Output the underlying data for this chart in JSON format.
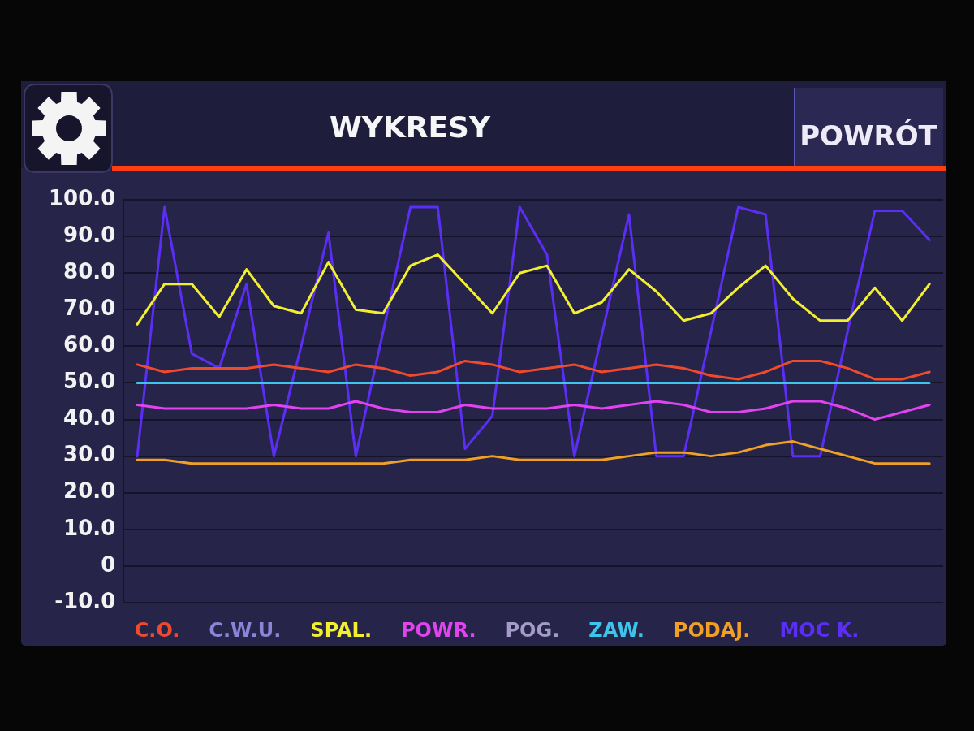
{
  "chart_data": {
    "type": "line",
    "title": "WYKRESY",
    "annotations": [
      "POWRÓT"
    ],
    "categories": [
      null,
      null,
      null,
      null,
      null,
      null,
      null,
      null,
      null,
      null,
      null,
      null,
      null,
      null,
      null,
      null,
      null,
      null,
      null,
      null,
      null,
      null,
      null,
      null,
      null,
      null,
      null,
      null,
      null,
      null
    ],
    "series": [
      {
        "name": "C.O.",
        "color": "#f04a2c",
        "values": [
          55,
          53,
          54,
          54,
          54,
          55,
          54,
          53,
          55,
          54,
          52,
          53,
          56,
          55,
          53,
          54,
          55,
          53,
          54,
          55,
          54,
          52,
          51,
          53,
          56,
          56,
          54,
          51,
          51,
          53
        ]
      },
      {
        "name": "C.W.U.",
        "color": "#8c84d8",
        "values": [
          null,
          null,
          null,
          null,
          null,
          null,
          null,
          null,
          null,
          null,
          null,
          null,
          null,
          null,
          null,
          null,
          null,
          null,
          null,
          null,
          null,
          null,
          null,
          null,
          null,
          null,
          null,
          null,
          null,
          null
        ]
      },
      {
        "name": "SPAL.",
        "color": "#f2ee30",
        "values": [
          66,
          77,
          77,
          68,
          81,
          71,
          69,
          83,
          70,
          69,
          82,
          85,
          77,
          69,
          80,
          82,
          69,
          72,
          81,
          75,
          67,
          69,
          76,
          82,
          73,
          67,
          67,
          76,
          67,
          77
        ]
      },
      {
        "name": "POWR.",
        "color": "#e044ee",
        "values": [
          44,
          43,
          43,
          43,
          43,
          44,
          43,
          43,
          45,
          43,
          42,
          42,
          44,
          43,
          43,
          43,
          44,
          43,
          44,
          45,
          44,
          42,
          42,
          43,
          45,
          45,
          43,
          40,
          42,
          44
        ]
      },
      {
        "name": "POG.",
        "color": "#a49cc8",
        "values": [
          null,
          null,
          null,
          null,
          null,
          null,
          null,
          null,
          null,
          null,
          null,
          null,
          null,
          null,
          null,
          null,
          null,
          null,
          null,
          null,
          null,
          null,
          null,
          null,
          null,
          null,
          null,
          null,
          null,
          null
        ]
      },
      {
        "name": "ZAW.",
        "color": "#3cc4ec",
        "values": [
          50,
          50,
          50,
          50,
          50,
          50,
          50,
          50,
          50,
          50,
          50,
          50,
          50,
          50,
          50,
          50,
          50,
          50,
          50,
          50,
          50,
          50,
          50,
          50,
          50,
          50,
          50,
          50,
          50,
          50
        ]
      },
      {
        "name": "PODAJ.",
        "color": "#f0a024",
        "values": [
          29,
          29,
          28,
          28,
          28,
          28,
          28,
          28,
          28,
          28,
          29,
          29,
          29,
          30,
          29,
          29,
          29,
          29,
          30,
          31,
          31,
          30,
          31,
          33,
          34,
          32,
          30,
          28,
          28,
          28
        ]
      },
      {
        "name": "MOC K.",
        "color": "#5b2ef5",
        "values": [
          30,
          98,
          58,
          54,
          77,
          30,
          60,
          91,
          30,
          64,
          98,
          98,
          32,
          41,
          98,
          85,
          30,
          63,
          96,
          30,
          30,
          64,
          98,
          96,
          30,
          30,
          64,
          97,
          97,
          89
        ]
      }
    ],
    "ylim": [
      -10,
      100
    ],
    "yticks": [
      {
        "value": 100,
        "label": "100.0"
      },
      {
        "value": 90,
        "label": "90.0"
      },
      {
        "value": 80,
        "label": "80.0"
      },
      {
        "value": 70,
        "label": "70.0"
      },
      {
        "value": 60,
        "label": "60.0"
      },
      {
        "value": 50,
        "label": "50.0"
      },
      {
        "value": 40,
        "label": "40.0"
      },
      {
        "value": 30,
        "label": "30.0"
      },
      {
        "value": 20,
        "label": "20.0"
      },
      {
        "value": 10,
        "label": "10.0"
      },
      0,
      {
        "value": -10,
        "label": "-10.0"
      }
    ],
    "grid": "y",
    "legend": "bottom",
    "tick_labels": "y",
    "marker": "none"
  }
}
